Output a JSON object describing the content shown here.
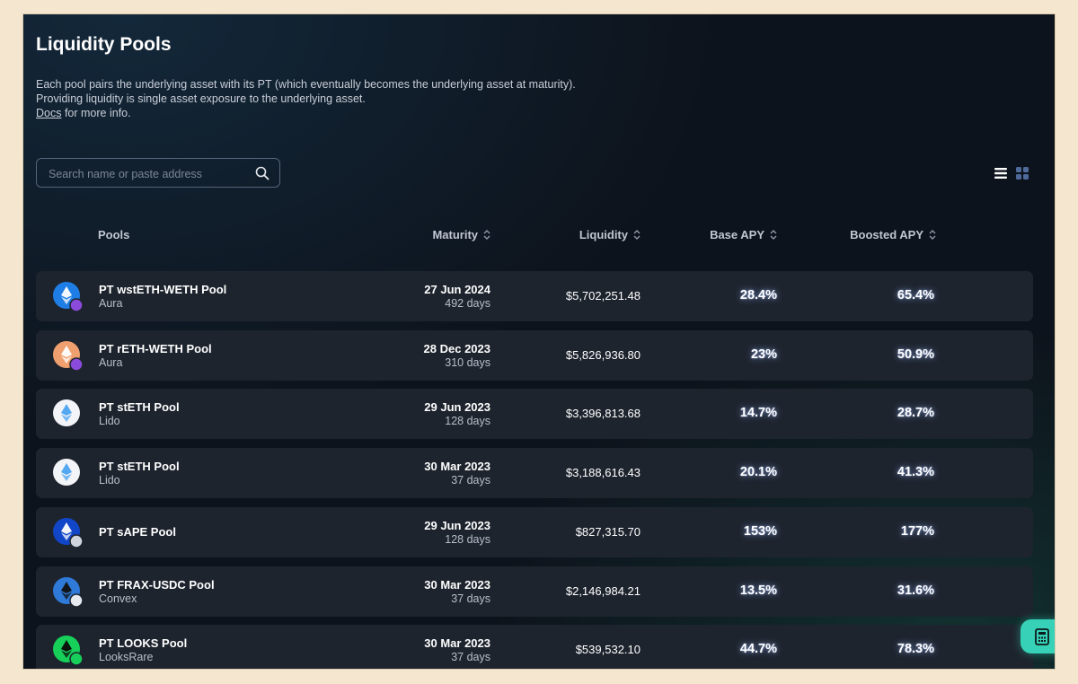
{
  "page": {
    "title": "Liquidity Pools",
    "description_line1": "Each pool pairs the underlying asset with its PT (which eventually becomes the underlying asset at maturity).",
    "description_line2": "Providing liquidity is single asset exposure to the underlying asset.",
    "docs_link": "Docs",
    "docs_suffix": " for more info."
  },
  "search": {
    "placeholder": "Search name or paste address",
    "value": ""
  },
  "view_toggle": {
    "list_icon": "list-view-icon",
    "grid_icon": "grid-view-icon"
  },
  "table": {
    "columns": {
      "pools": "Pools",
      "maturity": "Maturity",
      "liquidity": "Liquidity",
      "base_apy": "Base APY",
      "boosted_apy": "Boosted APY"
    },
    "rows": [
      {
        "name": "PT wstETH-WETH Pool",
        "platform": "Aura",
        "maturity_date": "27 Jun 2024",
        "maturity_days": "492 days",
        "liquidity": "$5,702,251.48",
        "base_apy": "28.4%",
        "boosted_apy": "65.4%",
        "icon": "wsteth-weth-icon",
        "icon_bg": "#1f7ee6",
        "icon_fg": "#ffffff",
        "badge_bg": "#8a4bdc"
      },
      {
        "name": "PT rETH-WETH Pool",
        "platform": "Aura",
        "maturity_date": "28 Dec 2023",
        "maturity_days": "310 days",
        "liquidity": "$5,826,936.80",
        "base_apy": "23%",
        "boosted_apy": "50.9%",
        "icon": "reth-weth-icon",
        "icon_bg": "#f0a06e",
        "icon_fg": "#ffffff",
        "badge_bg": "#8a4bdc"
      },
      {
        "name": "PT stETH Pool",
        "platform": "Lido",
        "maturity_date": "29 Jun 2023",
        "maturity_days": "128 days",
        "liquidity": "$3,396,813.68",
        "base_apy": "14.7%",
        "boosted_apy": "28.7%",
        "icon": "steth-icon",
        "icon_bg": "#f2f4f8",
        "icon_fg": "#4aa3f0",
        "badge_bg": ""
      },
      {
        "name": "PT stETH Pool",
        "platform": "Lido",
        "maturity_date": "30 Mar 2023",
        "maturity_days": "37 days",
        "liquidity": "$3,188,616.43",
        "base_apy": "20.1%",
        "boosted_apy": "41.3%",
        "icon": "steth-icon",
        "icon_bg": "#f2f4f8",
        "icon_fg": "#4aa3f0",
        "badge_bg": ""
      },
      {
        "name": "PT sAPE Pool",
        "platform": "",
        "maturity_date": "29 Jun 2023",
        "maturity_days": "128 days",
        "liquidity": "$827,315.70",
        "base_apy": "153%",
        "boosted_apy": "177%",
        "icon": "sape-icon",
        "icon_bg": "#1146c8",
        "icon_fg": "#ffffff",
        "badge_bg": "#d0d4dc"
      },
      {
        "name": "PT FRAX-USDC Pool",
        "platform": "Convex",
        "maturity_date": "30 Mar 2023",
        "maturity_days": "37 days",
        "liquidity": "$2,146,984.21",
        "base_apy": "13.5%",
        "boosted_apy": "31.6%",
        "icon": "frax-usdc-icon",
        "icon_bg": "#2f7ad8",
        "icon_fg": "#111111",
        "badge_bg": "#e6e9ee"
      },
      {
        "name": "PT LOOKS Pool",
        "platform": "LooksRare",
        "maturity_date": "30 Mar 2023",
        "maturity_days": "37 days",
        "liquidity": "$539,532.10",
        "base_apy": "44.7%",
        "boosted_apy": "78.3%",
        "icon": "looks-icon",
        "icon_bg": "#16d05a",
        "icon_fg": "#0a0a0a",
        "badge_bg": "#16d05a"
      }
    ]
  },
  "calculator_button": {
    "icon": "calculator-icon",
    "color": "#36d1b6"
  }
}
